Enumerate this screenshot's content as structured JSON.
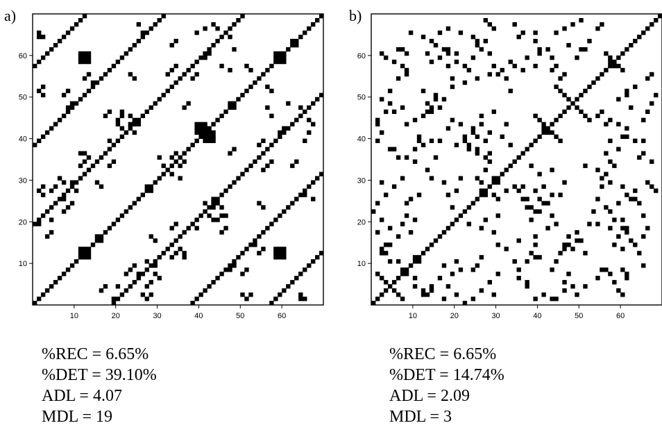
{
  "panels": [
    {
      "label": "a)",
      "stats": [
        "%REC = 6.65%",
        "%DET = 39.10%",
        "ADL = 4.07",
        "MDL = 19"
      ]
    },
    {
      "label": "b)",
      "stats": [
        "%REC = 6.65%",
        "%DET = 14.74%",
        "ADL = 2.09",
        "MDL = 3"
      ]
    }
  ],
  "chart_data": [
    {
      "type": "heatmap",
      "subtype": "recurrence-plot",
      "panel": "a)",
      "size": 70,
      "xticks": [
        10,
        20,
        30,
        40,
        50,
        60
      ],
      "yticks": [
        10,
        20,
        30,
        40,
        50,
        60
      ],
      "xlim": [
        0,
        70
      ],
      "ylim": [
        0,
        70
      ],
      "color": "#000000",
      "diagonal_offsets": [
        0,
        19,
        -19,
        38,
        -38,
        57,
        -57
      ],
      "blocks": [
        {
          "i": 12,
          "j": 12,
          "w": 3
        },
        {
          "i": 16,
          "j": 16,
          "w": 2
        },
        {
          "i": 59,
          "j": 59,
          "w": 3
        },
        {
          "i": 63,
          "j": 63,
          "w": 2
        },
        {
          "i": 12,
          "j": 59,
          "w": 3
        },
        {
          "i": 59,
          "j": 12,
          "w": 3
        },
        {
          "i": 40,
          "j": 42,
          "w": 3
        },
        {
          "i": 42,
          "j": 40,
          "w": 3
        },
        {
          "i": 28,
          "j": 28,
          "w": 2
        },
        {
          "i": 48,
          "j": 48,
          "w": 2
        }
      ],
      "points": [
        [
          2,
          65
        ],
        [
          3,
          65
        ],
        [
          13,
          55
        ],
        [
          14,
          56
        ],
        [
          15,
          54
        ],
        [
          12,
          34
        ],
        [
          13,
          35
        ],
        [
          14,
          36
        ],
        [
          12,
          37
        ],
        [
          13,
          37
        ],
        [
          22,
          43
        ],
        [
          24,
          44
        ],
        [
          25,
          42
        ],
        [
          23,
          8
        ],
        [
          24,
          9
        ],
        [
          25,
          10
        ],
        [
          33,
          56
        ],
        [
          34,
          57
        ],
        [
          35,
          58
        ],
        [
          34,
          12
        ],
        [
          35,
          13
        ],
        [
          33,
          14
        ],
        [
          44,
          26
        ],
        [
          45,
          25
        ],
        [
          46,
          24
        ],
        [
          44,
          21
        ],
        [
          46,
          22
        ],
        [
          27,
          3
        ],
        [
          28,
          2
        ],
        [
          29,
          3
        ],
        [
          51,
          3
        ],
        [
          52,
          2
        ],
        [
          53,
          3
        ],
        [
          8,
          46
        ],
        [
          9,
          48
        ],
        [
          10,
          49
        ],
        [
          61,
          23
        ],
        [
          62,
          24
        ],
        [
          63,
          25
        ],
        [
          8,
          26
        ],
        [
          5,
          28
        ],
        [
          6,
          29
        ],
        [
          66,
          40
        ],
        [
          67,
          42
        ],
        [
          68,
          44
        ],
        [
          5,
          21
        ],
        [
          21,
          45
        ],
        [
          22,
          47
        ],
        [
          20,
          2
        ],
        [
          66,
          2
        ],
        [
          31,
          36
        ],
        [
          32,
          34
        ],
        [
          29,
          17
        ],
        [
          30,
          16
        ],
        [
          48,
          65
        ],
        [
          49,
          62
        ],
        [
          52,
          58
        ],
        [
          53,
          57
        ],
        [
          39,
          20
        ],
        [
          40,
          19
        ],
        [
          26,
          68
        ],
        [
          27,
          66
        ],
        [
          19,
          34
        ],
        [
          20,
          35
        ],
        [
          37,
          48
        ],
        [
          38,
          49
        ],
        [
          57,
          48
        ],
        [
          58,
          46
        ],
        [
          63,
          34
        ],
        [
          64,
          35
        ],
        [
          35,
          37
        ],
        [
          36,
          34
        ],
        [
          17,
          4
        ],
        [
          18,
          5
        ],
        [
          42,
          60
        ],
        [
          43,
          61
        ],
        [
          10,
          30
        ],
        [
          11,
          28
        ],
        [
          55,
          39
        ],
        [
          56,
          40
        ],
        [
          24,
          56
        ],
        [
          25,
          55
        ],
        [
          30,
          8
        ],
        [
          31,
          7
        ],
        [
          46,
          18
        ],
        [
          47,
          19
        ],
        [
          9,
          52
        ],
        [
          8,
          51
        ],
        [
          44,
          68
        ],
        [
          45,
          67
        ]
      ]
    },
    {
      "type": "heatmap",
      "subtype": "recurrence-plot",
      "panel": "b)",
      "size": 70,
      "xticks": [
        10,
        20,
        30,
        40,
        50,
        60
      ],
      "yticks": [
        10,
        20,
        30,
        40,
        50,
        60
      ],
      "xlim": [
        0,
        70
      ],
      "ylim": [
        0,
        70
      ],
      "color": "#000000",
      "diagonal_offsets": [
        0
      ],
      "blocks": [
        {
          "i": 11,
          "j": 11,
          "w": 2
        },
        {
          "i": 30,
          "j": 30,
          "w": 2
        },
        {
          "i": 58,
          "j": 58,
          "w": 2
        },
        {
          "i": 42,
          "j": 42,
          "w": 2
        }
      ],
      "cross": [
        {
          "i": 49,
          "j": 49,
          "r": 4
        },
        {
          "i": 43,
          "j": 43,
          "r": 3
        },
        {
          "i": 59,
          "j": 59,
          "r": 2
        },
        {
          "i": 5,
          "j": 5,
          "r": 3
        }
      ],
      "points": [
        [
          3,
          61
        ],
        [
          4,
          60
        ],
        [
          7,
          62
        ],
        [
          8,
          58
        ],
        [
          9,
          57
        ],
        [
          5,
          49
        ],
        [
          6,
          47
        ],
        [
          8,
          48
        ],
        [
          2,
          44
        ],
        [
          3,
          30
        ],
        [
          2,
          18
        ],
        [
          3,
          14
        ],
        [
          4,
          13
        ],
        [
          5,
          15
        ],
        [
          7,
          11
        ],
        [
          8,
          9
        ],
        [
          6,
          38
        ],
        [
          7,
          36
        ],
        [
          9,
          25
        ],
        [
          10,
          26
        ],
        [
          11,
          21
        ],
        [
          12,
          40
        ],
        [
          13,
          39
        ],
        [
          14,
          47
        ],
        [
          15,
          48
        ],
        [
          16,
          50
        ],
        [
          18,
          62
        ],
        [
          19,
          61
        ],
        [
          21,
          59
        ],
        [
          23,
          58
        ],
        [
          24,
          57
        ],
        [
          25,
          60
        ],
        [
          26,
          64
        ],
        [
          27,
          62
        ],
        [
          29,
          61
        ],
        [
          30,
          58
        ],
        [
          31,
          56
        ],
        [
          33,
          55
        ],
        [
          34,
          52
        ],
        [
          35,
          68
        ],
        [
          36,
          65
        ],
        [
          37,
          57
        ],
        [
          38,
          60
        ],
        [
          40,
          66
        ],
        [
          41,
          61
        ],
        [
          43,
          62
        ],
        [
          45,
          58
        ],
        [
          46,
          55
        ],
        [
          47,
          56
        ],
        [
          48,
          63
        ],
        [
          50,
          60
        ],
        [
          52,
          62
        ],
        [
          53,
          64
        ],
        [
          55,
          67
        ],
        [
          56,
          68
        ],
        [
          57,
          44
        ],
        [
          58,
          40
        ],
        [
          60,
          44
        ],
        [
          62,
          41
        ],
        [
          64,
          40
        ],
        [
          65,
          36
        ],
        [
          66,
          37
        ],
        [
          67,
          30
        ],
        [
          68,
          29
        ],
        [
          69,
          28
        ],
        [
          65,
          25
        ],
        [
          66,
          22
        ],
        [
          67,
          19
        ],
        [
          64,
          15
        ],
        [
          65,
          13
        ],
        [
          66,
          10
        ],
        [
          61,
          9
        ],
        [
          62,
          8
        ],
        [
          59,
          6
        ],
        [
          56,
          9
        ],
        [
          55,
          7
        ],
        [
          52,
          5
        ],
        [
          50,
          3
        ],
        [
          47,
          4
        ],
        [
          45,
          2
        ],
        [
          42,
          3
        ],
        [
          40,
          2
        ],
        [
          38,
          5
        ],
        [
          36,
          9
        ],
        [
          35,
          11
        ],
        [
          33,
          14
        ],
        [
          31,
          8
        ],
        [
          29,
          6
        ],
        [
          27,
          4
        ],
        [
          25,
          2
        ],
        [
          23,
          1
        ],
        [
          21,
          3
        ],
        [
          19,
          5
        ],
        [
          17,
          7
        ],
        [
          15,
          4
        ],
        [
          13,
          3
        ],
        [
          11,
          5
        ],
        [
          22,
          44
        ],
        [
          23,
          41
        ],
        [
          24,
          39
        ],
        [
          25,
          42
        ],
        [
          26,
          38
        ],
        [
          27,
          44
        ],
        [
          28,
          40
        ],
        [
          29,
          37
        ],
        [
          32,
          41
        ],
        [
          33,
          44
        ],
        [
          34,
          39
        ],
        [
          36,
          28
        ],
        [
          37,
          26
        ],
        [
          38,
          24
        ],
        [
          39,
          21
        ],
        [
          40,
          23
        ],
        [
          41,
          26
        ],
        [
          42,
          29
        ],
        [
          43,
          25
        ],
        [
          44,
          22
        ],
        [
          45,
          20
        ],
        [
          46,
          27
        ],
        [
          47,
          30
        ],
        [
          18,
          30
        ],
        [
          19,
          27
        ],
        [
          20,
          24
        ],
        [
          21,
          28
        ],
        [
          22,
          31
        ],
        [
          26,
          31
        ],
        [
          27,
          28
        ],
        [
          28,
          33
        ],
        [
          29,
          35
        ],
        [
          30,
          27
        ],
        [
          8,
          20
        ],
        [
          9,
          22
        ],
        [
          10,
          18
        ],
        [
          12,
          27
        ],
        [
          14,
          33
        ],
        [
          15,
          31
        ],
        [
          16,
          36
        ],
        [
          17,
          40
        ],
        [
          19,
          43
        ],
        [
          20,
          45
        ],
        [
          50,
          18
        ],
        [
          51,
          16
        ],
        [
          52,
          13
        ],
        [
          53,
          20
        ],
        [
          54,
          23
        ],
        [
          55,
          26
        ],
        [
          56,
          29
        ],
        [
          57,
          32
        ],
        [
          58,
          35
        ],
        [
          59,
          34
        ],
        [
          60,
          17
        ],
        [
          61,
          21
        ],
        [
          62,
          19
        ],
        [
          63,
          26
        ],
        [
          64,
          28
        ],
        [
          66,
          45
        ],
        [
          67,
          47
        ],
        [
          68,
          49
        ],
        [
          69,
          51
        ],
        [
          62,
          51
        ],
        [
          14,
          61
        ],
        [
          15,
          59
        ],
        [
          16,
          63
        ],
        [
          17,
          66
        ],
        [
          19,
          58
        ],
        [
          20,
          55
        ],
        [
          38,
          11
        ],
        [
          39,
          13
        ],
        [
          40,
          15
        ],
        [
          41,
          12
        ],
        [
          44,
          9
        ],
        [
          45,
          11
        ],
        [
          46,
          13
        ],
        [
          47,
          15
        ],
        [
          48,
          17
        ],
        [
          49,
          14
        ]
      ]
    }
  ]
}
